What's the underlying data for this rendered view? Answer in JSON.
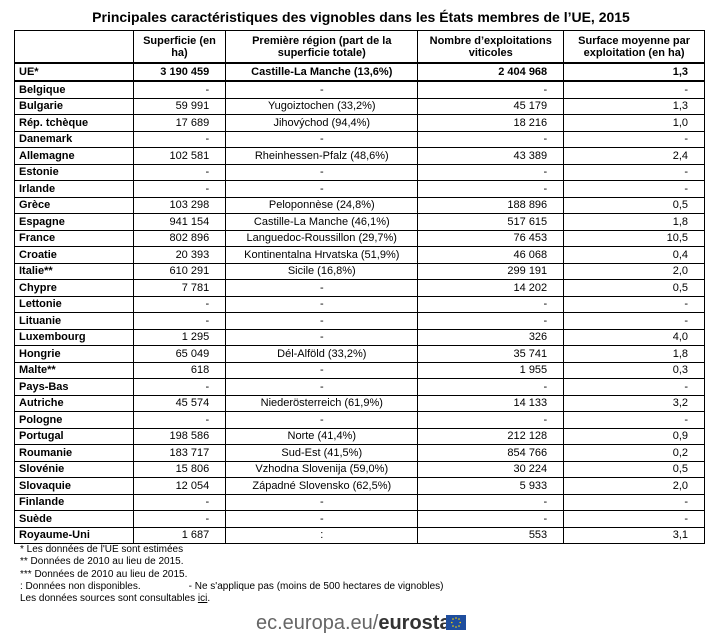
{
  "title": "Principales caractéristiques des vignobles dans les États membres de l’UE, 2015",
  "table": {
    "header": [
      "",
      "Superficie (en ha)",
      "Première région (part de la superficie totale)",
      "Nombre d’exploitations viticoles",
      "Surface moyenne par exploitation (en ha)"
    ],
    "total": [
      "UE*",
      "3 190 459",
      "Castille-La Manche (13,6%)",
      "2 404 968",
      "1,3"
    ],
    "rows": [
      [
        "Belgique",
        "-",
        "-",
        "-",
        "-"
      ],
      [
        "Bulgarie",
        "59 991",
        "Yugoiztochen (33,2%)",
        "45 179",
        "1,3"
      ],
      [
        "Rép. tchèque",
        "17 689",
        "Jihovýchod (94,4%)",
        "18 216",
        "1,0"
      ],
      [
        "Danemark",
        "-",
        "-",
        "-",
        "-"
      ],
      [
        "Allemagne",
        "102 581",
        "Rheinhessen-Pfalz (48,6%)",
        "43 389",
        "2,4"
      ],
      [
        "Estonie",
        "-",
        "-",
        "-",
        "-"
      ],
      [
        "Irlande",
        "-",
        "-",
        "-",
        "-"
      ],
      [
        "Grèce",
        "103 298",
        "Peloponnèse (24,8%)",
        "188 896",
        "0,5"
      ],
      [
        "Espagne",
        "941 154",
        "Castille-La Manche (46,1%)",
        "517 615",
        "1,8"
      ],
      [
        "France",
        "802 896",
        "Languedoc-Roussillon (29,7%)",
        "76 453",
        "10,5"
      ],
      [
        "Croatie",
        "20 393",
        "Kontinentalna Hrvatska (51,9%)",
        "46 068",
        "0,4"
      ],
      [
        "Italie**",
        "610 291",
        "Sicile (16,8%)",
        "299 191",
        "2,0"
      ],
      [
        "Chypre",
        "7 781",
        "-",
        "14 202",
        "0,5"
      ],
      [
        "Lettonie",
        "-",
        "-",
        "-",
        "-"
      ],
      [
        "Lituanie",
        "-",
        "-",
        "-",
        "-"
      ],
      [
        "Luxembourg",
        "1 295",
        "-",
        "326",
        "4,0"
      ],
      [
        "Hongrie",
        "65 049",
        "Dél-Alföld (33,2%)",
        "35 741",
        "1,8"
      ],
      [
        "Malte**",
        "618",
        "-",
        "1 955",
        "0,3"
      ],
      [
        "Pays-Bas",
        "-",
        "-",
        "-",
        "-"
      ],
      [
        "Autriche",
        "45 574",
        "Niederösterreich (61,9%)",
        "14 133",
        "3,2"
      ],
      [
        "Pologne",
        "-",
        "-",
        "-",
        "-"
      ],
      [
        "Portugal",
        "198 586",
        "Norte (41,4%)",
        "212 128",
        "0,9"
      ],
      [
        "Roumanie",
        "183 717",
        "Sud-Est (41,5%)",
        "854 766",
        "0,2"
      ],
      [
        "Slovénie",
        "15 806",
        "Vzhodna Slovenija (59,0%)",
        "30 224",
        "0,5"
      ],
      [
        "Slovaquie",
        "12 054",
        "Západné Slovensko (62,5%)",
        "5 933",
        "2,0"
      ],
      [
        "Finlande",
        "-",
        "-",
        "-",
        "-"
      ],
      [
        "Suède",
        "-",
        "-",
        "-",
        "-"
      ],
      [
        "Royaume-Uni",
        "1 687",
        ":",
        "553",
        "3,1"
      ]
    ]
  },
  "notes": [
    "*   Les données de l'UE sont estimées",
    "**  Données de 2010 au lieu de 2015.",
    "*** Données de 2010 au lieu de 2015.",
    ": Données non disponibles.",
    "- Ne s'applique pas (moins de 500 hectares de vignobles)",
    "Les données sources sont consultables ",
    "ici",
    "."
  ],
  "footer": {
    "site": "ec.europa.eu/",
    "brand": "eurostat"
  }
}
